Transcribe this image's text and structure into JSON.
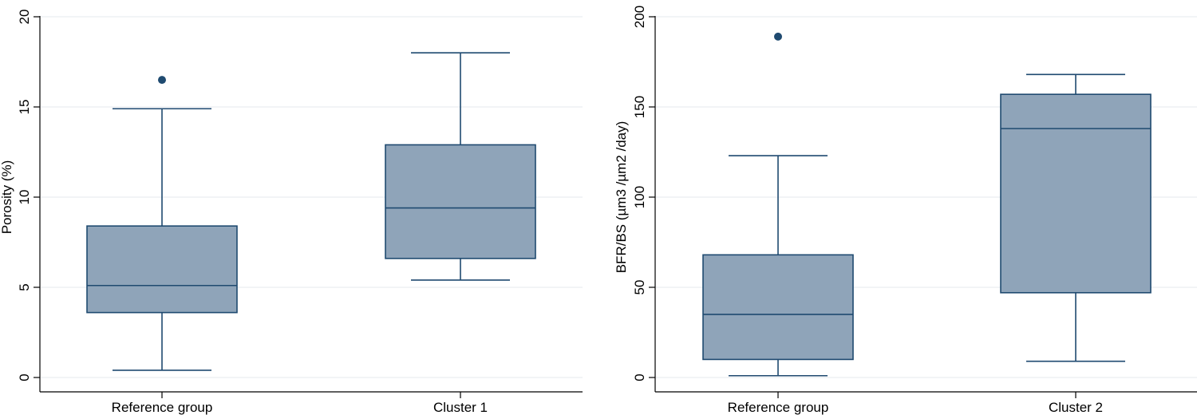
{
  "style": {
    "box_fill": "#8fa4b9",
    "box_stroke": "#1f4a70",
    "outlier_color": "#1f4a70",
    "grid_color": "#e6eaee",
    "axis_color": "#000000"
  },
  "chart_data": [
    {
      "type": "box",
      "title": "",
      "xlabel": "",
      "ylabel": "Porosity (%)",
      "ylim": [
        0,
        20
      ],
      "yticks": [
        0,
        5,
        10,
        15,
        20
      ],
      "grid": true,
      "categories": [
        "Reference group",
        "Cluster 1"
      ],
      "boxes": [
        {
          "category": "Reference group",
          "whisker_low": 0.4,
          "q1": 3.6,
          "median": 5.1,
          "q3": 8.4,
          "whisker_high": 14.9,
          "outliers": [
            16.5
          ]
        },
        {
          "category": "Cluster 1",
          "whisker_low": 5.4,
          "q1": 6.6,
          "median": 9.4,
          "q3": 12.9,
          "whisker_high": 18.0,
          "outliers": []
        }
      ]
    },
    {
      "type": "box",
      "title": "",
      "xlabel": "",
      "ylabel": "BFR/BS (µm3 /µm2 /day)",
      "ylim": [
        0,
        200
      ],
      "yticks": [
        0,
        50,
        100,
        150,
        200
      ],
      "grid": true,
      "categories": [
        "Reference group",
        "Cluster 2"
      ],
      "boxes": [
        {
          "category": "Reference group",
          "whisker_low": 1,
          "q1": 10,
          "median": 35,
          "q3": 68,
          "whisker_high": 123,
          "outliers": [
            189
          ]
        },
        {
          "category": "Cluster 2",
          "whisker_low": 9,
          "q1": 47,
          "median": 138,
          "q3": 157,
          "whisker_high": 168,
          "outliers": []
        }
      ]
    }
  ]
}
